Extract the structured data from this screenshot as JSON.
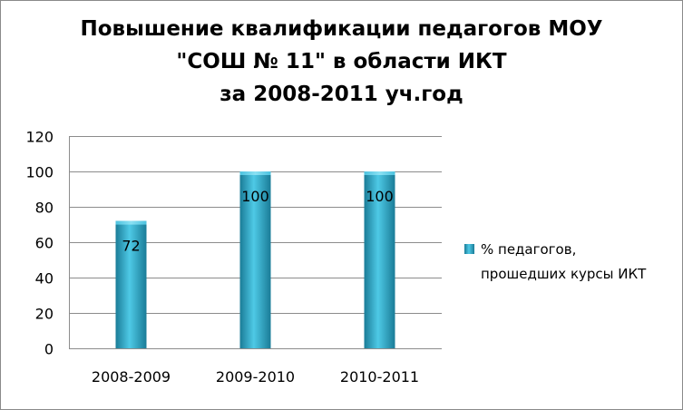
{
  "chart_data": {
    "type": "bar",
    "title_lines": [
      "Повышение квалификации педагогов МОУ",
      "\"СОШ № 11\" в области ИКТ",
      "за 2008-2011 уч.год"
    ],
    "categories": [
      "2008-2009",
      "2009-2010",
      "2010-2011"
    ],
    "series": [
      {
        "name_lines": [
          "% педагогов,",
          "прошедших курсы ИКТ"
        ],
        "values": [
          72,
          100,
          100
        ],
        "data_labels": [
          "72",
          "100",
          "100"
        ]
      }
    ],
    "ylim": [
      0,
      120
    ],
    "yticks": [
      0,
      20,
      40,
      60,
      80,
      100,
      120
    ],
    "ytick_labels": [
      "0",
      "20",
      "40",
      "60",
      "80",
      "100",
      "120"
    ],
    "xlabel": "",
    "ylabel": "",
    "grid": "horizontal",
    "legend_position": "right",
    "colors": {
      "bar_dark": "#1a7c97",
      "bar_light": "#4ec9e6",
      "grid": "#8c8c8c"
    }
  }
}
